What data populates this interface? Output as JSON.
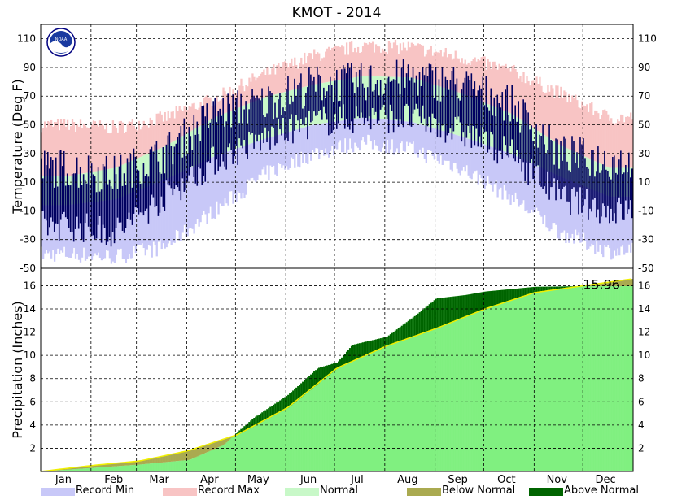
{
  "title": "KMOT - 2014",
  "logo_text": "NOAA",
  "colors": {
    "record_min": "#c8c8f8",
    "record_max": "#f8c4c4",
    "normal": "#c8f8c8",
    "below_normal": "#aaaa50",
    "above_normal": "#006400",
    "observed_temp": "#000060",
    "precip_fill": "#80f080",
    "precip_normal_line": "#f0f000"
  },
  "chart_data": [
    {
      "type": "area",
      "name": "temperature",
      "ylabel": "Temperature (Deg F)",
      "ylim": [
        -50,
        120
      ],
      "yticks": [
        110,
        90,
        70,
        50,
        30,
        10,
        -10,
        -30,
        -50
      ],
      "grid": true,
      "months": [
        "Jan",
        "Feb",
        "Mar",
        "Apr",
        "May",
        "Jun",
        "Jul",
        "Aug",
        "Sep",
        "Oct",
        "Nov",
        "Dec"
      ],
      "series": [
        {
          "name": "Record Max",
          "values": [
            50,
            48,
            55,
            68,
            85,
            98,
            105,
            104,
            97,
            88,
            72,
            55
          ]
        },
        {
          "name": "Normal",
          "high": [
            14,
            20,
            35,
            55,
            69,
            78,
            84,
            83,
            72,
            58,
            36,
            20
          ],
          "low": [
            -6,
            -2,
            12,
            28,
            40,
            50,
            55,
            52,
            42,
            30,
            14,
            0
          ]
        },
        {
          "name": "Record Min",
          "values": [
            -40,
            -42,
            -35,
            -10,
            15,
            30,
            38,
            33,
            20,
            0,
            -25,
            -38
          ]
        },
        {
          "name": "Observed",
          "high": [
            20,
            15,
            30,
            58,
            65,
            78,
            80,
            83,
            78,
            65,
            30,
            25
          ],
          "low": [
            -20,
            -25,
            0,
            25,
            40,
            52,
            55,
            55,
            45,
            30,
            0,
            -10
          ]
        }
      ]
    },
    {
      "type": "area",
      "name": "precipitation",
      "ylabel": "Precipitation (Inches)",
      "ylim": [
        0,
        17.5
      ],
      "yticks": [
        16,
        14,
        12,
        10,
        8,
        6,
        4,
        2
      ],
      "grid": true,
      "annotation": "15.96",
      "months": [
        "Jan",
        "Feb",
        "Mar",
        "Apr",
        "May",
        "Jun",
        "Jul",
        "Aug",
        "Sep",
        "Oct",
        "Nov",
        "Dec"
      ],
      "series": [
        {
          "name": "Observed Cumulative",
          "x_month": [
            0,
            1,
            2,
            3,
            3.7,
            4,
            4.3,
            5,
            5.6,
            6,
            6.3,
            7,
            7.6,
            8,
            8.6,
            9,
            9.5,
            10,
            11,
            12
          ],
          "values": [
            0,
            0.3,
            0.6,
            1.0,
            2.3,
            3.5,
            4.6,
            6.6,
            8.9,
            9.4,
            10.9,
            11.6,
            13.5,
            14.9,
            15.2,
            15.5,
            15.7,
            15.9,
            15.96,
            15.96
          ]
        },
        {
          "name": "Normal Cumulative",
          "x_month": [
            0,
            1,
            2,
            3,
            4,
            5,
            6,
            7,
            8,
            9,
            10,
            11,
            12
          ],
          "values": [
            0,
            0.5,
            0.9,
            1.8,
            3.2,
            5.5,
            8.9,
            10.8,
            12.3,
            14.0,
            15.4,
            16.0,
            16.6
          ]
        }
      ]
    }
  ],
  "legend": [
    {
      "label": "Record Min",
      "color": "#c8c8f8"
    },
    {
      "label": "Record Max",
      "color": "#f8c4c4"
    },
    {
      "label": "Normal",
      "color": "#c8f8c8"
    },
    {
      "label": "Below Normal",
      "color": "#aaaa50"
    },
    {
      "label": "Above Normal",
      "color": "#006400"
    }
  ]
}
